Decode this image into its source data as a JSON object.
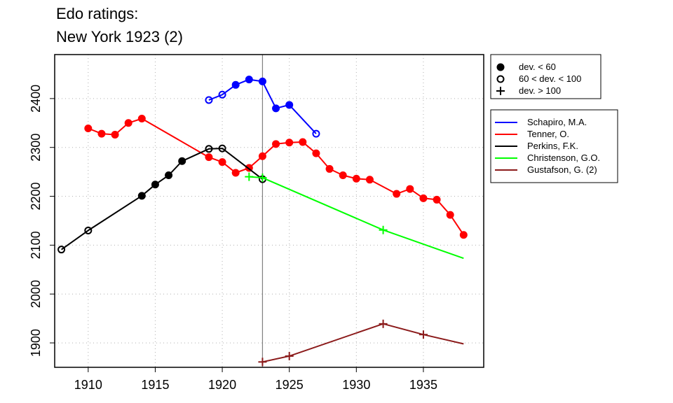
{
  "chart_data": {
    "type": "line",
    "title_lines": [
      "Edo ratings:",
      "New York 1923 (2)"
    ],
    "xlabel": "",
    "ylabel": "",
    "xlim": [
      1907.5,
      1939.5
    ],
    "ylim": [
      1850,
      2490
    ],
    "x_ticks": [
      1910,
      1915,
      1920,
      1925,
      1930,
      1935
    ],
    "y_ticks": [
      1900,
      2000,
      2100,
      2200,
      2300,
      2400
    ],
    "grid": true,
    "marker_year": 1923,
    "legend_markers": [
      {
        "symbol": "filled",
        "label": "dev. < 60"
      },
      {
        "symbol": "open",
        "label": "60 < dev. < 100"
      },
      {
        "symbol": "plus",
        "label": "dev. > 100"
      }
    ],
    "series": [
      {
        "name": "Schapiro, M.A.",
        "color": "#0000ff",
        "points": [
          [
            1919,
            2397,
            "open"
          ],
          [
            1920,
            2408,
            "open"
          ],
          [
            1921,
            2428,
            "filled"
          ],
          [
            1922,
            2439,
            "filled"
          ],
          [
            1923,
            2435,
            "filled"
          ],
          [
            1924,
            2380,
            "filled"
          ],
          [
            1925,
            2387,
            "filled"
          ],
          [
            1927,
            2328,
            "open"
          ]
        ]
      },
      {
        "name": "Tenner, O.",
        "color": "#ff0000",
        "points": [
          [
            1910,
            2339,
            "filled"
          ],
          [
            1911,
            2328,
            "filled"
          ],
          [
            1912,
            2326,
            "filled"
          ],
          [
            1913,
            2350,
            "filled"
          ],
          [
            1914,
            2359,
            "filled"
          ],
          [
            1919,
            2280,
            "filled"
          ],
          [
            1920,
            2270,
            "filled"
          ],
          [
            1921,
            2248,
            "filled"
          ],
          [
            1922,
            2258,
            "filled"
          ],
          [
            1923,
            2282,
            "filled"
          ],
          [
            1924,
            2307,
            "filled"
          ],
          [
            1925,
            2310,
            "filled"
          ],
          [
            1926,
            2311,
            "filled"
          ],
          [
            1927,
            2288,
            "filled"
          ],
          [
            1928,
            2256,
            "filled"
          ],
          [
            1929,
            2243,
            "filled"
          ],
          [
            1930,
            2236,
            "filled"
          ],
          [
            1931,
            2234,
            "filled"
          ],
          [
            1933,
            2205,
            "filled"
          ],
          [
            1934,
            2215,
            "filled"
          ],
          [
            1935,
            2196,
            "filled"
          ],
          [
            1936,
            2193,
            "filled"
          ],
          [
            1937,
            2162,
            "filled"
          ],
          [
            1938,
            2121,
            "filled"
          ]
        ]
      },
      {
        "name": "Perkins, F.K.",
        "color": "#000000",
        "points": [
          [
            1908,
            2091,
            "open"
          ],
          [
            1910,
            2130,
            "open"
          ],
          [
            1914,
            2201,
            "filled"
          ],
          [
            1915,
            2224,
            "filled"
          ],
          [
            1916,
            2243,
            "filled"
          ],
          [
            1917,
            2272,
            "filled"
          ],
          [
            1919,
            2297,
            "open"
          ],
          [
            1920,
            2298,
            "open"
          ],
          [
            1923,
            2235,
            "open"
          ]
        ]
      },
      {
        "name": "Christenson, G.O.",
        "color": "#00ff00",
        "points": [
          [
            1922,
            2240,
            "plus"
          ],
          [
            1923,
            2238,
            "plus"
          ],
          [
            1932,
            2131,
            "plus"
          ],
          [
            1938,
            2073,
            null
          ]
        ]
      },
      {
        "name": "Gustafson, G. (2)",
        "color": "#8b1a1a",
        "points": [
          [
            1923,
            1861,
            "plus"
          ],
          [
            1925,
            1873,
            "plus"
          ],
          [
            1932,
            1939,
            "plus"
          ],
          [
            1935,
            1917,
            "plus"
          ],
          [
            1938,
            1898,
            null
          ]
        ]
      }
    ]
  }
}
